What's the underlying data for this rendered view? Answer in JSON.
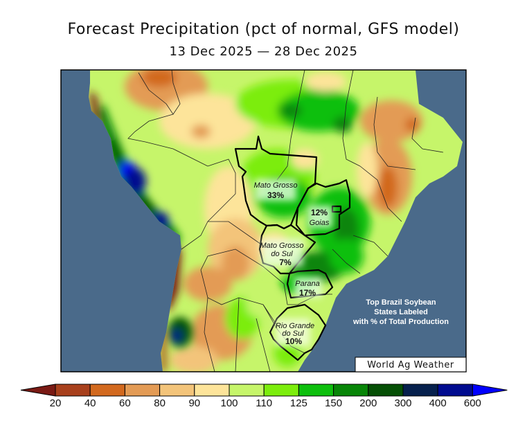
{
  "chart_data": {
    "type": "heatmap",
    "title": "Forecast Precipitation (pct of normal, GFS model)",
    "subtitle": "13 Dec 2025 — 28 Dec 2025",
    "region": "South America",
    "colorbar": {
      "ticks": [
        "20",
        "40",
        "60",
        "80",
        "90",
        "100",
        "110",
        "125",
        "150",
        "200",
        "300",
        "400",
        "600"
      ],
      "colors": [
        "#7a1a14",
        "#a8401c",
        "#d2691e",
        "#e39b55",
        "#f3c47a",
        "#fde49a",
        "#c6f56a",
        "#7ced0c",
        "#0dbf0d",
        "#078507",
        "#054f05",
        "#06204d",
        "#000b8f",
        "#0000ff"
      ],
      "extend": "both"
    },
    "state_labels": [
      {
        "name": "Mato Grosso",
        "value": "33%"
      },
      {
        "name": "Goias",
        "value": "12%"
      },
      {
        "name_line1": "Mato Grosso",
        "name_line2": "do Sul",
        "value": "7%"
      },
      {
        "name": "Parana",
        "value": "17%"
      },
      {
        "name_line1": "Rio Grande",
        "name_line2": "do Sul",
        "value": "10%"
      }
    ],
    "annotation": [
      "Top Brazil Soybean",
      "States Labeled",
      "with % of Total Production"
    ],
    "credit": "World Ag Weather",
    "ocean_color": "#4a6a8a"
  }
}
